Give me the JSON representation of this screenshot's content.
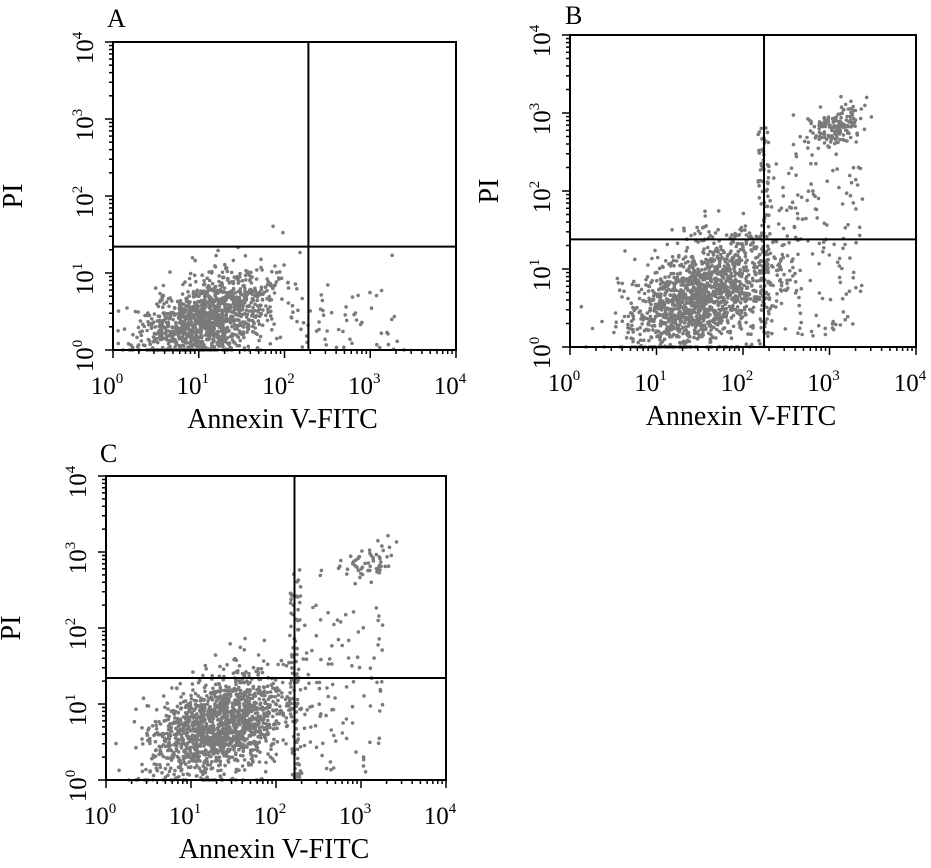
{
  "figure_description": "Flow cytometry Annexin V-FITC / PI apoptosis dot plots",
  "colors": {
    "frame": "#000000",
    "dots": "#7a7a7a",
    "background": "#ffffff"
  },
  "chart_data": [
    {
      "type": "scatter",
      "panel_label": "A",
      "xlabel": "Annexin V-FITC",
      "ylabel": "PI",
      "xscale": "log",
      "yscale": "log",
      "xlim": [
        1,
        10000
      ],
      "ylim": [
        1,
        10000
      ],
      "x_ticks": [
        {
          "base": "10",
          "exp": "0"
        },
        {
          "base": "10",
          "exp": "1"
        },
        {
          "base": "10",
          "exp": "2"
        },
        {
          "base": "10",
          "exp": "3"
        },
        {
          "base": "10",
          "exp": "4"
        }
      ],
      "y_ticks": [
        {
          "base": "10",
          "exp": "0"
        },
        {
          "base": "10",
          "exp": "1"
        },
        {
          "base": "10",
          "exp": "2"
        },
        {
          "base": "10",
          "exp": "3"
        },
        {
          "base": "10",
          "exp": "4"
        }
      ],
      "gate": {
        "x": 190,
        "y": 22
      },
      "grid": false,
      "series": [
        {
          "name": "viable cells cluster",
          "center": [
            12,
            2.5
          ],
          "spread": [
            0.38,
            0.27
          ],
          "count": 1300
        },
        {
          "name": "right tail",
          "x_range": [
            120,
            2500
          ],
          "y_range": [
            1,
            6
          ],
          "count": 55
        },
        {
          "name": "upper outliers",
          "points": [
            [
              1800,
              17
            ],
            [
              320,
              7
            ]
          ]
        }
      ]
    },
    {
      "type": "scatter",
      "panel_label": "B",
      "xlabel": "Annexin V-FITC",
      "ylabel": "PI",
      "xscale": "log",
      "yscale": "log",
      "xlim": [
        1,
        10000
      ],
      "ylim": [
        1,
        10000
      ],
      "x_ticks": [
        {
          "base": "10",
          "exp": "0"
        },
        {
          "base": "10",
          "exp": "1"
        },
        {
          "base": "10",
          "exp": "2"
        },
        {
          "base": "10",
          "exp": "3"
        },
        {
          "base": "10",
          "exp": "4"
        }
      ],
      "y_ticks": [
        {
          "base": "10",
          "exp": "0"
        },
        {
          "base": "10",
          "exp": "1"
        },
        {
          "base": "10",
          "exp": "2"
        },
        {
          "base": "10",
          "exp": "3"
        },
        {
          "base": "10",
          "exp": "4"
        }
      ],
      "gate": {
        "x": 175,
        "y": 24
      },
      "grid": false,
      "series": [
        {
          "name": "viable cells cluster",
          "center": [
            35,
            4.5
          ],
          "spread": [
            0.42,
            0.35
          ],
          "count": 1500
        },
        {
          "name": "late apoptotic cluster",
          "center": [
            1100,
            650
          ],
          "spread": [
            0.17,
            0.13
          ],
          "count": 160
        },
        {
          "name": "early apoptotic / scattered",
          "x_range": [
            180,
            2500
          ],
          "y_range": [
            1.3,
            300
          ],
          "count": 150
        },
        {
          "name": "gate line events",
          "x_range": [
            150,
            200
          ],
          "y_range": [
            1,
            700
          ],
          "count": 90
        }
      ]
    },
    {
      "type": "scatter",
      "panel_label": "C",
      "xlabel": "Annexin V-FITC",
      "ylabel": "PI",
      "xscale": "log",
      "yscale": "log",
      "xlim": [
        1,
        10000
      ],
      "ylim": [
        1,
        10000
      ],
      "x_ticks": [
        {
          "base": "10",
          "exp": "0"
        },
        {
          "base": "10",
          "exp": "1"
        },
        {
          "base": "10",
          "exp": "2"
        },
        {
          "base": "10",
          "exp": "3"
        },
        {
          "base": "10",
          "exp": "4"
        }
      ],
      "y_ticks": [
        {
          "base": "10",
          "exp": "0"
        },
        {
          "base": "10",
          "exp": "1"
        },
        {
          "base": "10",
          "exp": "2"
        },
        {
          "base": "10",
          "exp": "3"
        },
        {
          "base": "10",
          "exp": "4"
        }
      ],
      "gate": {
        "x": 165,
        "y": 22
      },
      "grid": false,
      "series": [
        {
          "name": "viable cells cluster",
          "center": [
            22,
            5
          ],
          "spread": [
            0.4,
            0.32
          ],
          "count": 1500
        },
        {
          "name": "late apoptotic cluster",
          "center": [
            1100,
            700
          ],
          "spread": [
            0.16,
            0.12
          ],
          "count": 60
        },
        {
          "name": "early apoptotic / scattered",
          "x_range": [
            180,
            1800
          ],
          "y_range": [
            1.2,
            200
          ],
          "count": 90
        },
        {
          "name": "gate line events",
          "x_range": [
            145,
            195
          ],
          "y_range": [
            1,
            700
          ],
          "count": 80
        }
      ]
    }
  ]
}
